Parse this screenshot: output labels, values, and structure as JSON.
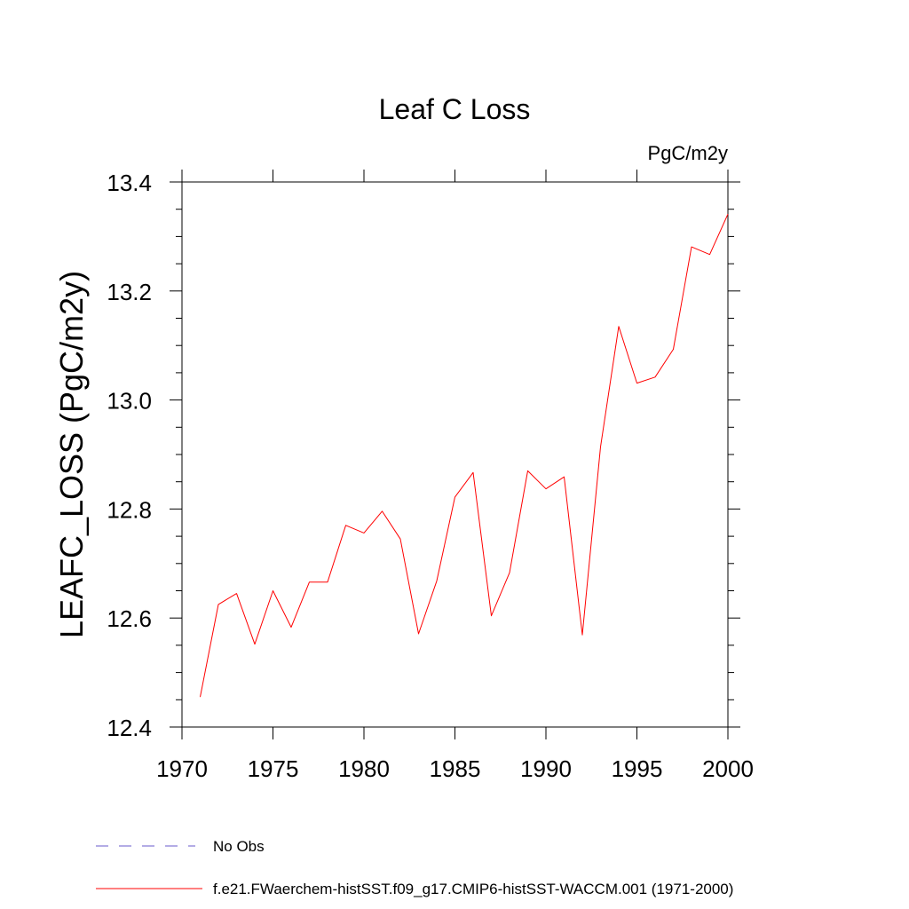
{
  "chart_data": {
    "type": "line",
    "title": "Leaf C Loss",
    "units_label": "PgC/m2y",
    "xlabel": "",
    "ylabel": "LEAFC_LOSS  (PgC/m2y)",
    "xlim": [
      1970,
      2000
    ],
    "ylim": [
      12.4,
      13.4
    ],
    "x_ticks": [
      1970,
      1975,
      1980,
      1985,
      1990,
      1995,
      2000
    ],
    "y_ticks": [
      "12.4",
      "12.6",
      "12.8",
      "13.0",
      "13.2",
      "13.4"
    ],
    "grid": false,
    "legend_position": "bottom",
    "series": [
      {
        "name": "f.e21.FWaerchem-histSST.f09_g17.CMIP6-histSST-WACCM.001 (1971-2000)",
        "color": "#ff0000",
        "style": "solid",
        "x": [
          1971,
          1972,
          1973,
          1974,
          1975,
          1976,
          1977,
          1978,
          1979,
          1980,
          1981,
          1982,
          1983,
          1984,
          1985,
          1986,
          1987,
          1988,
          1989,
          1990,
          1991,
          1992,
          1993,
          1994,
          1995,
          1996,
          1997,
          1998,
          1999,
          2000
        ],
        "y": [
          12.455,
          12.625,
          12.645,
          12.552,
          12.65,
          12.583,
          12.666,
          12.666,
          12.77,
          12.756,
          12.796,
          12.745,
          12.571,
          12.668,
          12.822,
          12.867,
          12.604,
          12.683,
          12.87,
          12.837,
          12.859,
          12.569,
          12.914,
          13.135,
          13.031,
          13.042,
          13.093,
          13.281,
          13.267,
          13.341
        ]
      }
    ],
    "legend": [
      {
        "label": "No Obs",
        "color": "#6a5acd",
        "style": "dashed"
      },
      {
        "label": "f.e21.FWaerchem-histSST.f09_g17.CMIP6-histSST-WACCM.001 (1971-2000)",
        "color": "#ff0000",
        "style": "solid"
      }
    ]
  }
}
